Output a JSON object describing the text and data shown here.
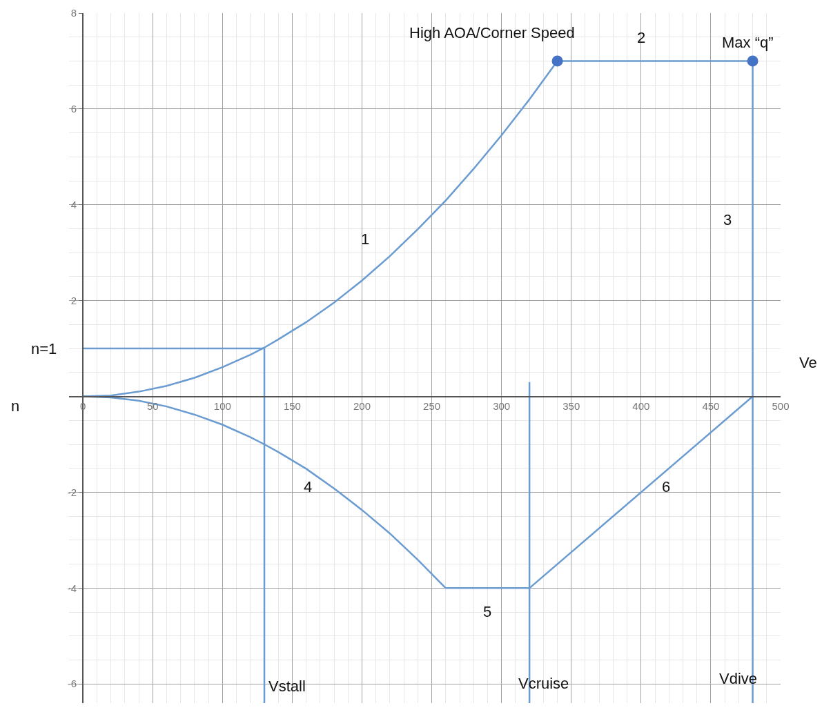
{
  "chart_data": {
    "type": "line",
    "xlabel": "Ve",
    "ylabel": "n",
    "xlim": [
      -10,
      500
    ],
    "ylim": [
      -6.4,
      8
    ],
    "xticks": [
      0,
      50,
      100,
      150,
      200,
      250,
      300,
      350,
      400,
      450,
      500
    ],
    "yticks": [
      -6,
      -4,
      -2,
      2,
      4,
      6,
      8
    ],
    "grid": true,
    "line_style": "solid",
    "marker": "none",
    "series": [
      {
        "color": "#6a9bd1",
        "x": [
          0,
          20,
          40,
          60,
          80,
          100,
          120,
          130,
          140,
          160,
          180,
          200,
          220,
          240,
          260,
          280,
          300,
          320,
          340
        ],
        "values": [
          0,
          0.02,
          0.1,
          0.22,
          0.39,
          0.61,
          0.87,
          1.02,
          1.19,
          1.55,
          1.96,
          2.42,
          2.93,
          3.49,
          4.09,
          4.75,
          5.45,
          6.2,
          7
        ]
      },
      {
        "color": "#6a9bd1",
        "x": [
          340,
          480
        ],
        "values": [
          7,
          7
        ]
      },
      {
        "color": "#6a9bd1",
        "x": [
          480,
          480
        ],
        "values": [
          7,
          -6.4
        ]
      },
      {
        "color": "#6a9bd1",
        "x": [
          0,
          20,
          40,
          60,
          80,
          100,
          120,
          130,
          140,
          160,
          180,
          200,
          220,
          240,
          260
        ],
        "values": [
          0,
          -0.02,
          -0.09,
          -0.21,
          -0.38,
          -0.59,
          -0.85,
          -1,
          -1.16,
          -1.51,
          -1.92,
          -2.37,
          -2.86,
          -3.41,
          -4
        ]
      },
      {
        "color": "#6a9bd1",
        "x": [
          260,
          320
        ],
        "values": [
          -4,
          -4
        ]
      },
      {
        "color": "#6a9bd1",
        "x": [
          320,
          480
        ],
        "values": [
          -4,
          0
        ]
      },
      {
        "color": "#6a9bd1",
        "x": [
          0,
          130
        ],
        "values": [
          1,
          1
        ]
      },
      {
        "color": "#6a9bd1",
        "x": [
          130,
          130
        ],
        "values": [
          1,
          -6.4
        ]
      },
      {
        "color": "#6a9bd1",
        "x": [
          320,
          320
        ],
        "values": [
          0.3,
          -6.4
        ]
      },
      {
        "type": "scatter",
        "color": "#4472c4",
        "marker": "circle",
        "x": [
          340,
          480
        ],
        "values": [
          7,
          7
        ]
      }
    ],
    "annotations": [
      "High AOA/Corner Speed",
      "2",
      "Max “q”",
      "1",
      "3",
      "n=1",
      "4",
      "5",
      "6",
      "Vstall",
      "Vcruise",
      "Vdive"
    ]
  }
}
